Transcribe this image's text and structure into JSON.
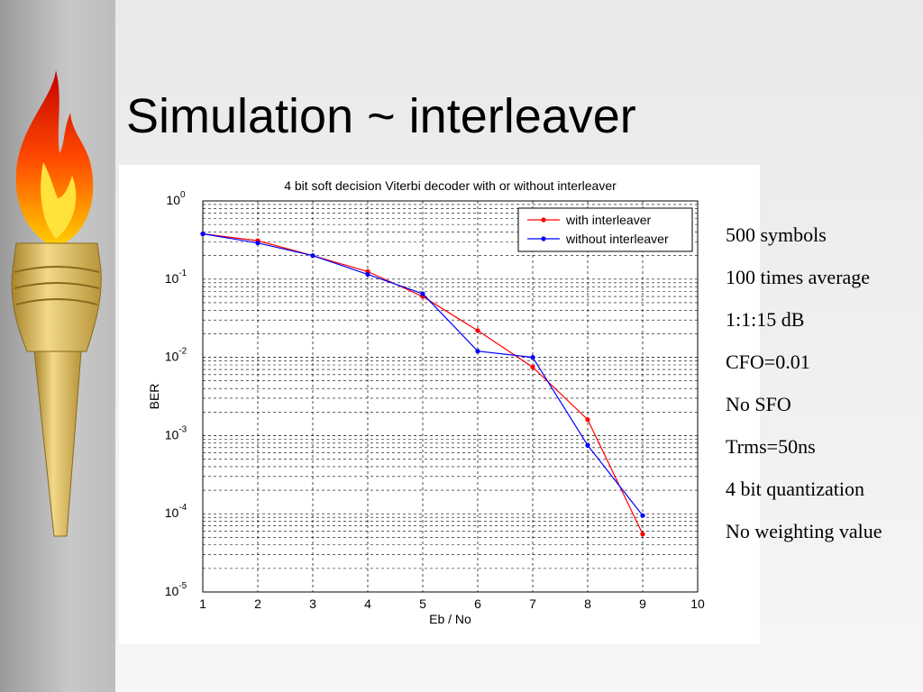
{
  "slide": {
    "title": "Simulation ~ interleaver"
  },
  "notes": [
    "500 symbols",
    "100 times average",
    "1:1:15 dB",
    "CFO=0.01",
    "No SFO",
    "Trms=50ns",
    "4 bit quantization",
    "No weighting value"
  ],
  "icons": {
    "torch": "torch-icon"
  },
  "chart_data": {
    "type": "line",
    "title": "4 bit soft decision Viterbi decoder with or without interleaver",
    "xlabel": "Eb / No",
    "ylabel": "BER",
    "xlim": [
      1,
      10
    ],
    "ylim": [
      1e-05,
      1
    ],
    "yscale": "log",
    "grid": true,
    "legend_position": "top-right",
    "x_ticks": [
      "1",
      "2",
      "3",
      "4",
      "5",
      "6",
      "7",
      "8",
      "9",
      "10"
    ],
    "y_ticks": [
      {
        "base": "10",
        "exp": "0",
        "value": 1
      },
      {
        "base": "10",
        "exp": "-1",
        "value": 0.1
      },
      {
        "base": "10",
        "exp": "-2",
        "value": 0.01
      },
      {
        "base": "10",
        "exp": "-3",
        "value": 0.001
      },
      {
        "base": "10",
        "exp": "-4",
        "value": 0.0001
      },
      {
        "base": "10",
        "exp": "-5",
        "value": 1e-05
      }
    ],
    "series": [
      {
        "name": "with interleaver",
        "color": "#ff0000",
        "x": [
          1,
          2,
          3,
          4,
          5,
          6,
          7,
          8,
          9
        ],
        "y": [
          0.38,
          0.31,
          0.2,
          0.125,
          0.06,
          0.022,
          0.0075,
          0.0016,
          5.5e-05
        ]
      },
      {
        "name": "without interleaver",
        "color": "#0000ff",
        "x": [
          1,
          2,
          3,
          4,
          5,
          6,
          7,
          8,
          9
        ],
        "y": [
          0.38,
          0.29,
          0.2,
          0.115,
          0.065,
          0.012,
          0.01,
          0.00075,
          9.5e-05
        ]
      }
    ]
  }
}
